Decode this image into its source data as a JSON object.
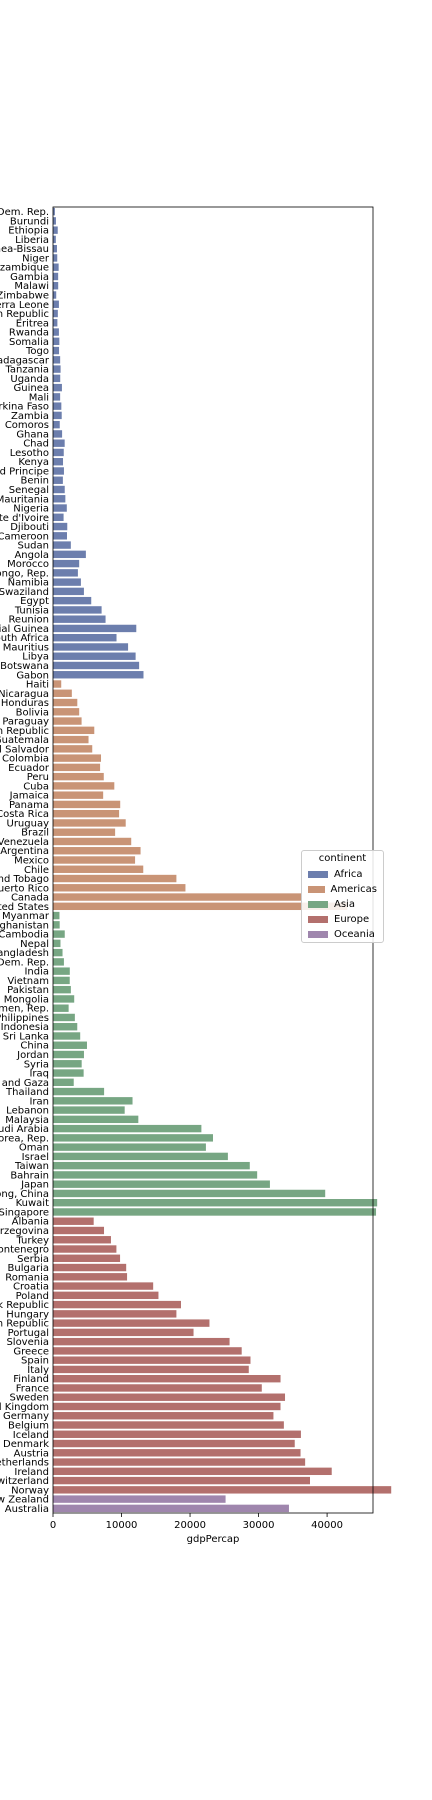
{
  "chart_data": {
    "type": "bar",
    "orientation": "horizontal",
    "xlabel": "gdpPercap",
    "ylabel": "",
    "xlim": [
      0,
      46700
    ],
    "xticks": [
      0,
      10000,
      20000,
      30000,
      40000
    ],
    "grid": false,
    "legend": {
      "title": "continent",
      "placement": "right"
    },
    "series": [
      {
        "name": "Africa",
        "color": "#6c7ead",
        "categories": [
          "Congo, Dem. Rep.",
          "Burundi",
          "Ethiopia",
          "Liberia",
          "Guinea-Bissau",
          "Niger",
          "Mozambique",
          "Gambia",
          "Malawi",
          "Zimbabwe",
          "Sierra Leone",
          "Central African Republic",
          "Eritrea",
          "Rwanda",
          "Somalia",
          "Togo",
          "Madagascar",
          "Tanzania",
          "Uganda",
          "Guinea",
          "Mali",
          "Burkina Faso",
          "Zambia",
          "Comoros",
          "Ghana",
          "Chad",
          "Lesotho",
          "Kenya",
          "Sao Tome and Principe",
          "Benin",
          "Senegal",
          "Mauritania",
          "Nigeria",
          "Cote d'Ivoire",
          "Djibouti",
          "Cameroon",
          "Sudan",
          "Angola",
          "Morocco",
          "Congo, Rep.",
          "Namibia",
          "Swaziland",
          "Egypt",
          "Tunisia",
          "Reunion",
          "Equatorial Guinea",
          "South Africa",
          "Mauritius",
          "Libya",
          "Botswana",
          "Gabon"
        ],
        "values": [
          278,
          430,
          691,
          415,
          579,
          620,
          824,
          753,
          759,
          470,
          863,
          706,
          641,
          863,
          926,
          883,
          1045,
          1108,
          1056,
          1303,
          1042,
          1217,
          1271,
          986,
          1328,
          1704,
          1569,
          1463,
          1598,
          1441,
          1712,
          1803,
          2014,
          1545,
          2082,
          2042,
          2602,
          4797,
          3820,
          3633,
          4072,
          4513,
          5581,
          7093,
          7670,
          12154,
          9270,
          10957,
          12057,
          12570,
          13206
        ]
      },
      {
        "name": "Americas",
        "color": "#c99476",
        "categories": [
          "Haiti",
          "Nicaragua",
          "Honduras",
          "Bolivia",
          "Paraguay",
          "Dominican Republic",
          "Guatemala",
          "El Salvador",
          "Colombia",
          "Ecuador",
          "Peru",
          "Cuba",
          "Jamaica",
          "Panama",
          "Costa Rica",
          "Uruguay",
          "Brazil",
          "Venezuela",
          "Argentina",
          "Mexico",
          "Chile",
          "Trinidad and Tobago",
          "Puerto Rico",
          "Canada",
          "United States"
        ],
        "values": [
          1201,
          2749,
          3548,
          3822,
          4173,
          6025,
          5186,
          5728,
          7007,
          6873,
          7409,
          8948,
          7321,
          9809,
          9645,
          10611,
          9066,
          11416,
          12779,
          11978,
          13172,
          18009,
          19329,
          36319,
          42952
        ]
      },
      {
        "name": "Asia",
        "color": "#77a683",
        "categories": [
          "Myanmar",
          "Afghanistan",
          "Cambodia",
          "Nepal",
          "Bangladesh",
          "Korea, Dem. Rep.",
          "India",
          "Vietnam",
          "Pakistan",
          "Mongolia",
          "Yemen, Rep.",
          "Philippines",
          "Indonesia",
          "Sri Lanka",
          "China",
          "Jordan",
          "Syria",
          "Iraq",
          "West Bank and Gaza",
          "Thailand",
          "Iran",
          "Lebanon",
          "Malaysia",
          "Saudi Arabia",
          "Korea, Rep.",
          "Oman",
          "Israel",
          "Taiwan",
          "Bahrain",
          "Japan",
          "Hong Kong, China",
          "Kuwait",
          "Singapore"
        ],
        "values": [
          944,
          975,
          1714,
          1091,
          1391,
          1593,
          2452,
          2442,
          2606,
          3096,
          2281,
          3190,
          3541,
          3970,
          4959,
          4519,
          4185,
          4471,
          3025,
          7458,
          11606,
          10461,
          12452,
          21655,
          23348,
          22316,
          25523,
          28718,
          29796,
          31656,
          39725,
          47307,
          47143
        ]
      },
      {
        "name": "Europe",
        "color": "#b3706d",
        "categories": [
          "Albania",
          "Bosnia and Herzegovina",
          "Turkey",
          "Montenegro",
          "Serbia",
          "Bulgaria",
          "Romania",
          "Croatia",
          "Poland",
          "Slovak Republic",
          "Hungary",
          "Czech Republic",
          "Portugal",
          "Slovenia",
          "Greece",
          "Spain",
          "Italy",
          "Finland",
          "France",
          "Sweden",
          "United Kingdom",
          "Germany",
          "Belgium",
          "Iceland",
          "Denmark",
          "Austria",
          "Netherlands",
          "Ireland",
          "Switzerland",
          "Norway"
        ],
        "values": [
          5937,
          7446,
          8458,
          9254,
          9787,
          10681,
          10809,
          14619,
          15390,
          18678,
          18009,
          22833,
          20510,
          25768,
          27538,
          28821,
          28570,
          33207,
          30470,
          33860,
          33203,
          32170,
          33693,
          36181,
          35278,
          36126,
          36798,
          40676,
          37506,
          49357
        ]
      },
      {
        "name": "Oceania",
        "color": "#9f86ad",
        "categories": [
          "New Zealand",
          "Australia"
        ],
        "values": [
          25185,
          34435
        ]
      }
    ]
  }
}
